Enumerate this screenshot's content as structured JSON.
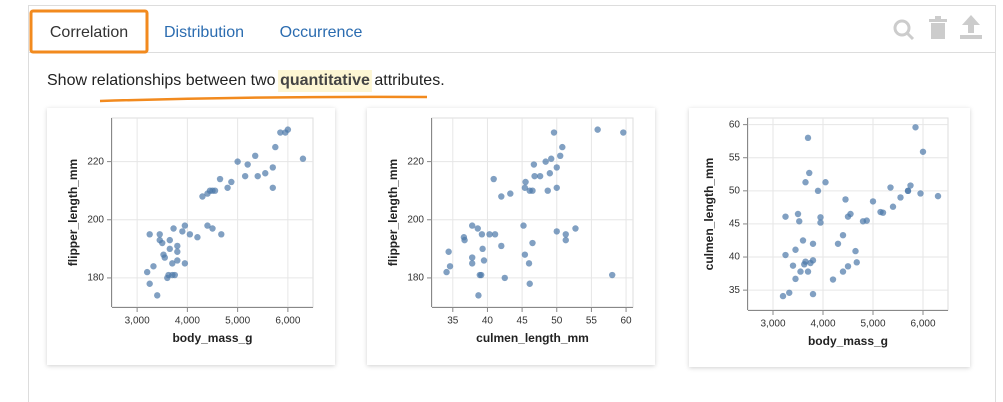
{
  "tabs": [
    "Correlation",
    "Distribution",
    "Occurrence"
  ],
  "description": {
    "before": "Show relationships between two",
    "highlight": "quantitative",
    "after": "attributes."
  },
  "chart_data": [
    {
      "type": "scatter",
      "xlabel": "body_mass_g",
      "ylabel": "flipper_length_mm",
      "color": "#4c78a8",
      "grid": true,
      "xlim": [
        2500,
        6500
      ],
      "ylim": [
        170,
        235
      ],
      "xticks": [
        {
          "value": 3000,
          "label": "3,000"
        },
        {
          "value": 4000,
          "label": "4,000"
        },
        {
          "value": 5000,
          "label": "5,000"
        },
        {
          "value": 6000,
          "label": "6,000"
        }
      ],
      "yticks": [
        180,
        200,
        220
      ],
      "x": [
        3750,
        3800,
        3250,
        3450,
        3650,
        3625,
        4675,
        3200,
        3800,
        4400,
        3700,
        3450,
        4500,
        3325,
        4200,
        3400,
        3600,
        3800,
        3950,
        3550,
        3500,
        3900,
        3650,
        3525,
        3725,
        3950,
        3250,
        4050,
        4500,
        5700,
        4450,
        5700,
        5400,
        4550,
        4800,
        5200,
        4400,
        5150,
        4650,
        5550,
        5850,
        6300,
        5000,
        5350,
        5950,
        5750,
        6000,
        4875,
        3700,
        4300
      ],
      "values": [
        181,
        186,
        195,
        193,
        190,
        181,
        195,
        182,
        191,
        198,
        185,
        195,
        197,
        184,
        194,
        174,
        180,
        189,
        185,
        187,
        192,
        196,
        193,
        188,
        197,
        198,
        178,
        195,
        210,
        211,
        210,
        218,
        215,
        210,
        211,
        219,
        209,
        215,
        214,
        216,
        230,
        221,
        220,
        222,
        230,
        225,
        231,
        213,
        181,
        208
      ]
    },
    {
      "type": "scatter",
      "xlabel": "culmen_length_mm",
      "ylabel": "flipper_length_mm",
      "color": "#4c78a8",
      "grid": true,
      "xlim": [
        32,
        61
      ],
      "ylim": [
        170,
        235
      ],
      "xticks": [
        35,
        40,
        45,
        50,
        55,
        60
      ],
      "yticks": [
        180,
        200,
        220
      ],
      "x": [
        39.1,
        39.5,
        40.3,
        36.7,
        39.3,
        38.9,
        39.2,
        34.1,
        42.0,
        37.8,
        37.8,
        41.1,
        38.6,
        34.6,
        36.6,
        38.7,
        42.5,
        34.4,
        46.0,
        37.8,
        46.5,
        50.0,
        51.3,
        45.4,
        52.7,
        45.2,
        46.1,
        51.3,
        46.1,
        50.0,
        48.7,
        50.0,
        47.6,
        46.5,
        45.4,
        46.7,
        43.3,
        46.8,
        40.9,
        49.0,
        59.6,
        49.2,
        48.4,
        50.5,
        49.6,
        50.8,
        55.9,
        45.5,
        58.0,
        42.0
      ],
      "values": [
        181,
        186,
        195,
        193,
        190,
        181,
        195,
        182,
        191,
        198,
        185,
        195,
        197,
        184,
        194,
        174,
        180,
        189,
        185,
        187,
        192,
        196,
        193,
        188,
        197,
        198,
        178,
        195,
        210,
        211,
        210,
        218,
        215,
        210,
        211,
        219,
        209,
        215,
        214,
        216,
        230,
        221,
        220,
        222,
        230,
        225,
        231,
        213,
        181,
        208
      ]
    },
    {
      "type": "scatter",
      "xlabel": "body_mass_g",
      "ylabel": "culmen_length_mm",
      "color": "#4c78a8",
      "grid": true,
      "xlim": [
        2500,
        6500
      ],
      "ylim": [
        32,
        61
      ],
      "xticks": [
        {
          "value": 3000,
          "label": "3,000"
        },
        {
          "value": 4000,
          "label": "4,000"
        },
        {
          "value": 5000,
          "label": "5,000"
        },
        {
          "value": 6000,
          "label": "6,000"
        }
      ],
      "yticks": [
        35,
        40,
        45,
        50,
        55,
        60
      ],
      "x": [
        3750,
        3800,
        3250,
        3450,
        3650,
        3625,
        4675,
        3200,
        3800,
        4400,
        3700,
        3450,
        4500,
        3325,
        4200,
        3400,
        3600,
        3800,
        3950,
        3550,
        3500,
        3900,
        3650,
        3525,
        3725,
        3950,
        3250,
        4050,
        4500,
        5700,
        4450,
        5700,
        5400,
        4550,
        4800,
        5200,
        4400,
        5150,
        4650,
        5550,
        5850,
        6300,
        5000,
        5350,
        5950,
        5750,
        6000,
        4875,
        3700,
        4300
      ],
      "values": [
        39.1,
        39.5,
        40.3,
        36.7,
        39.3,
        38.9,
        39.2,
        34.1,
        42.0,
        37.8,
        37.8,
        41.1,
        38.6,
        34.6,
        36.6,
        38.7,
        42.5,
        34.4,
        46.0,
        37.8,
        46.5,
        50.0,
        51.3,
        45.4,
        52.7,
        45.2,
        46.1,
        51.3,
        46.1,
        50.0,
        48.7,
        50.0,
        47.6,
        46.5,
        45.4,
        46.7,
        43.3,
        46.8,
        40.9,
        49.0,
        59.6,
        49.2,
        48.4,
        50.5,
        49.6,
        50.8,
        55.9,
        45.5,
        58.0,
        42.0
      ]
    }
  ]
}
